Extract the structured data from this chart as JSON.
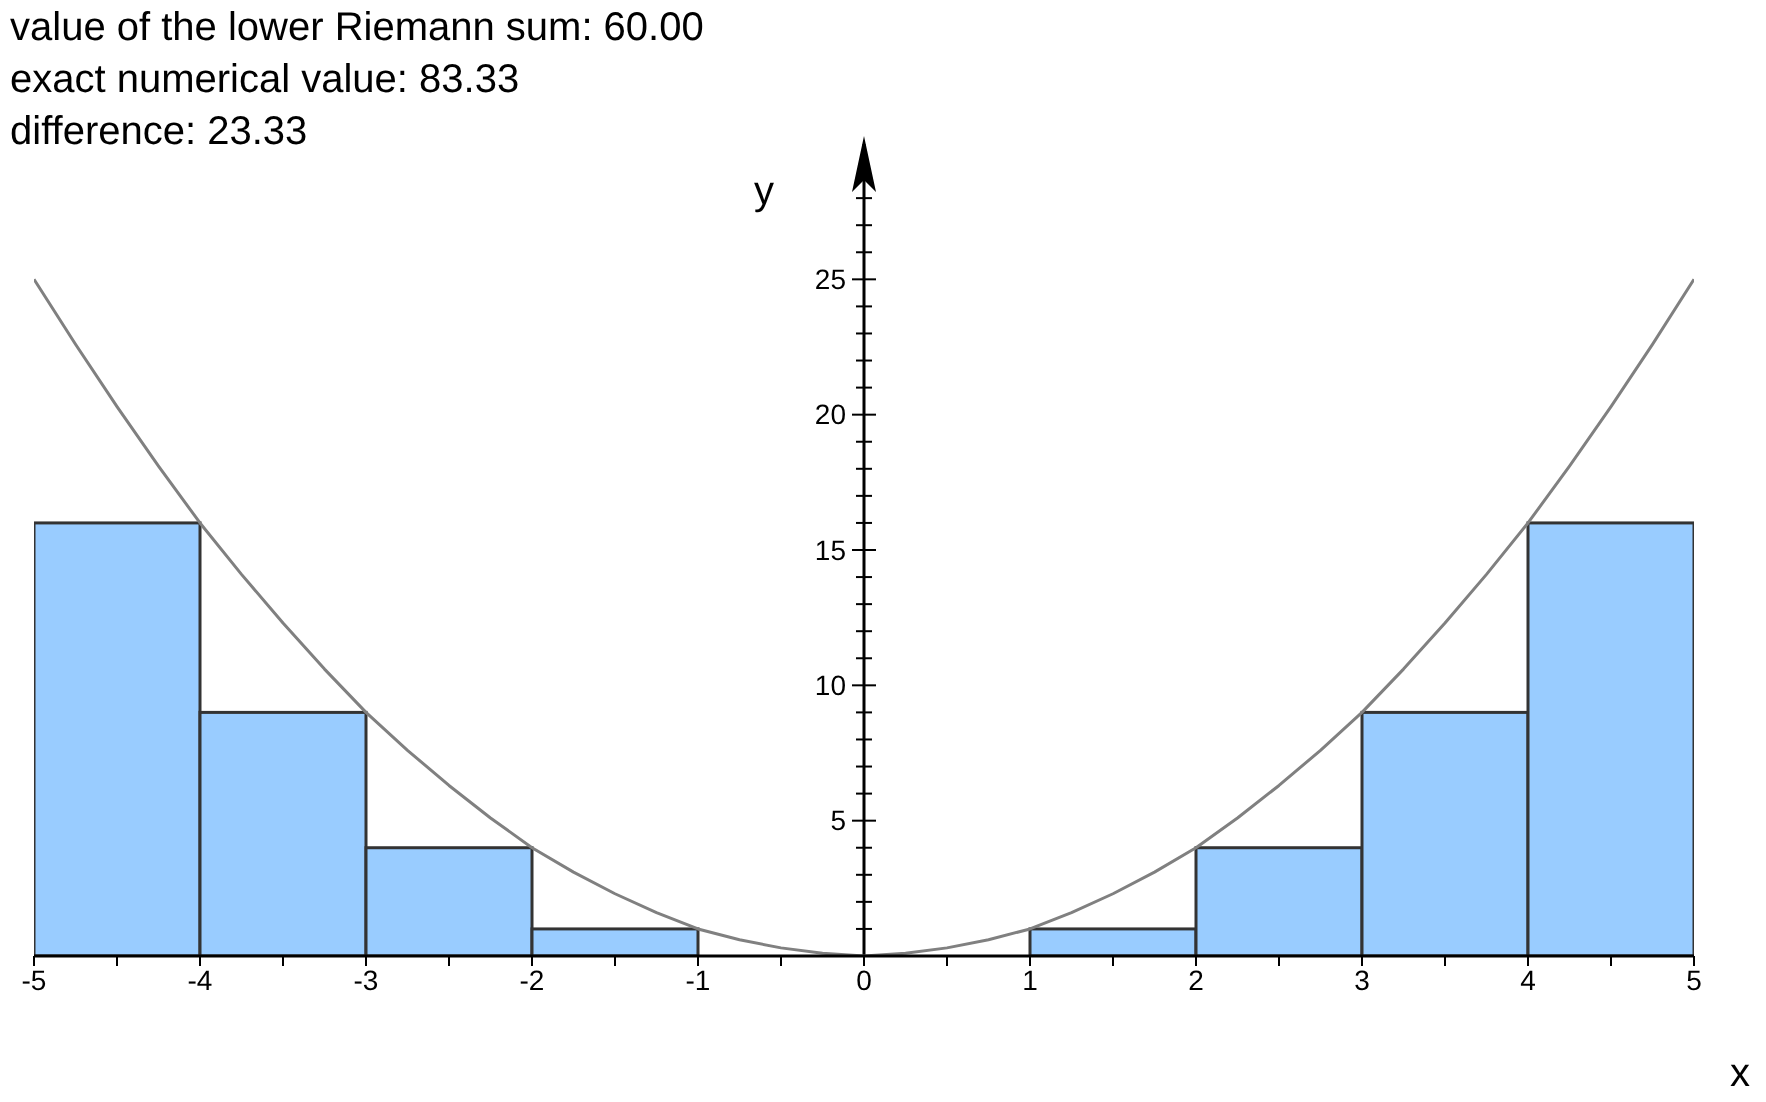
{
  "chart_data": {
    "type": "histogram",
    "xlabel": "x",
    "ylabel": "y",
    "annotations": [
      "value of the lower Riemann sum:  60.00",
      "exact numerical value:  83.33",
      "difference:  23.33"
    ],
    "series": [
      {
        "color": "#99ccff",
        "bins": [
          -5,
          -4,
          -3,
          -2,
          -1,
          0,
          1,
          2,
          3,
          4,
          5
        ],
        "values": [
          16,
          9,
          4,
          1,
          0,
          0,
          1,
          4,
          9,
          16
        ]
      },
      {
        "type": "line",
        "color": "#808080",
        "x": [
          -5,
          -4.75,
          -4.5,
          -4.25,
          -4,
          -3.75,
          -3.5,
          -3.25,
          -3,
          -2.75,
          -2.5,
          -2.25,
          -2,
          -1.75,
          -1.5,
          -1.25,
          -1,
          -0.75,
          -0.5,
          -0.25,
          0,
          0.25,
          0.5,
          0.75,
          1,
          1.25,
          1.5,
          1.75,
          2,
          2.25,
          2.5,
          2.75,
          3,
          3.25,
          3.5,
          3.75,
          4,
          4.25,
          4.5,
          4.75,
          5
        ],
        "values": [
          25,
          22.6,
          20.3,
          18.1,
          16,
          14.1,
          12.3,
          10.6,
          9,
          7.6,
          6.3,
          5.1,
          4,
          3.1,
          2.3,
          1.6,
          1,
          0.6,
          0.3,
          0.1,
          0,
          0.1,
          0.3,
          0.6,
          1,
          1.6,
          2.3,
          3.1,
          4,
          5.1,
          6.3,
          7.6,
          9,
          10.6,
          12.3,
          14.1,
          16,
          18.1,
          20.3,
          22.6,
          25
        ]
      }
    ],
    "xlim": [
      -5,
      5
    ],
    "ylim": [
      0,
      30
    ],
    "xticks": [
      -5,
      {
        "value": -4.5,
        "label": null
      },
      -4,
      {
        "value": -3.5,
        "label": null
      },
      -3,
      {
        "value": -2.5,
        "label": null
      },
      -2,
      {
        "value": -1.5,
        "label": null
      },
      -1,
      {
        "value": -0.5,
        "label": null
      },
      0,
      {
        "value": 0.5,
        "label": null
      },
      1,
      {
        "value": 1.5,
        "label": null
      },
      2,
      {
        "value": 2.5,
        "label": null
      },
      3,
      {
        "value": 3.5,
        "label": null
      },
      4,
      {
        "value": 4.5,
        "label": null
      },
      5
    ],
    "yticks": [
      {
        "value": 1,
        "label": null
      },
      {
        "value": 2,
        "label": null
      },
      {
        "value": 3,
        "label": null
      },
      {
        "value": 4,
        "label": null
      },
      5,
      {
        "value": 6,
        "label": null
      },
      {
        "value": 7,
        "label": null
      },
      {
        "value": 8,
        "label": null
      },
      {
        "value": 9,
        "label": null
      },
      10,
      {
        "value": 11,
        "label": null
      },
      {
        "value": 12,
        "label": null
      },
      {
        "value": 13,
        "label": null
      },
      {
        "value": 14,
        "label": null
      },
      15,
      {
        "value": 16,
        "label": null
      },
      {
        "value": 17,
        "label": null
      },
      {
        "value": 18,
        "label": null
      },
      {
        "value": 19,
        "label": null
      },
      20,
      {
        "value": 21,
        "label": null
      },
      {
        "value": 22,
        "label": null
      },
      {
        "value": 23,
        "label": null
      },
      {
        "value": 24,
        "label": null
      },
      25,
      {
        "value": 26,
        "label": null
      },
      {
        "value": 27,
        "label": null
      },
      {
        "value": 28,
        "label": null
      }
    ],
    "grid": false
  }
}
